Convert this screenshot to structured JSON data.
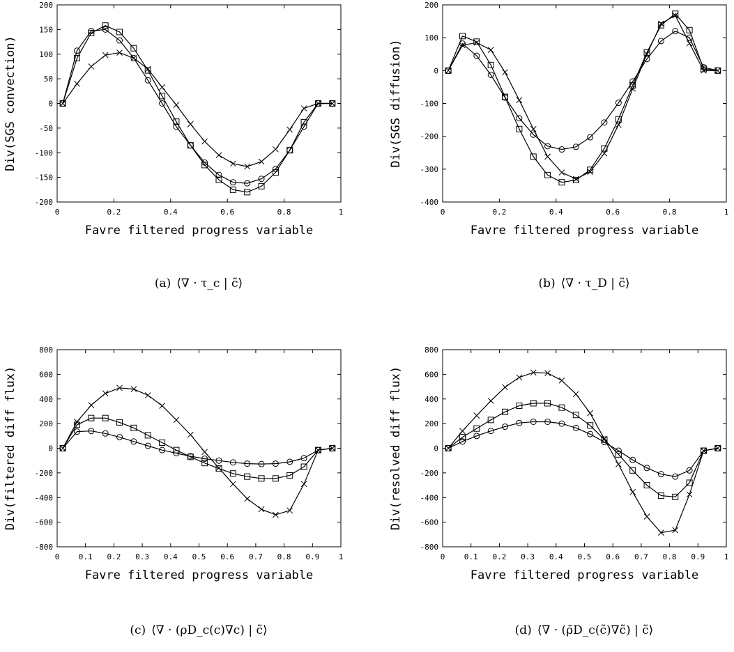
{
  "chart_data": [
    {
      "type": "line",
      "caption_label": "(a)",
      "caption_math": "⟨∇ · τ_c | c̃⟩",
      "xlabel": "Favre filtered progress variable",
      "ylabel": "Div(SGS convection)",
      "xlim": [
        0,
        1
      ],
      "ylim": [
        -200,
        200
      ],
      "xticks": [
        "0",
        "0.2",
        "0.4",
        "0.6",
        "0.8",
        "1"
      ],
      "yticks": [
        "200",
        "150",
        "100",
        "50",
        "0",
        "-50",
        "-100",
        "-150",
        "-200"
      ],
      "x": [
        0.02,
        0.07,
        0.12,
        0.17,
        0.22,
        0.27,
        0.32,
        0.37,
        0.42,
        0.47,
        0.52,
        0.57,
        0.62,
        0.67,
        0.72,
        0.77,
        0.82,
        0.87,
        0.92,
        0.97
      ],
      "series": [
        {
          "marker": "circle",
          "values": [
            0,
            107,
            147,
            150,
            128,
            92,
            47,
            0,
            -47,
            -85,
            -120,
            -145,
            -160,
            -162,
            -153,
            -133,
            -95,
            -47,
            0,
            0
          ]
        },
        {
          "marker": "square",
          "values": [
            0,
            92,
            143,
            158,
            145,
            112,
            67,
            15,
            -37,
            -85,
            -125,
            -155,
            -175,
            -180,
            -168,
            -140,
            -95,
            -38,
            0,
            0
          ]
        },
        {
          "marker": "cross",
          "values": [
            0,
            40,
            75,
            98,
            103,
            92,
            70,
            33,
            -3,
            -42,
            -77,
            -105,
            -122,
            -128,
            -118,
            -93,
            -53,
            -10,
            0,
            0
          ]
        }
      ]
    },
    {
      "type": "line",
      "caption_label": "(b)",
      "caption_math": "⟨∇ · τ_D | c̃⟩",
      "xlabel": "Favre filtered progress variable",
      "ylabel": "Div(SGS diffusion)",
      "xlim": [
        0,
        1
      ],
      "ylim": [
        -400,
        200
      ],
      "xticks": [
        "0",
        "0.2",
        "0.4",
        "0.6",
        "0.8",
        "1"
      ],
      "yticks": [
        "200",
        "100",
        "0",
        "-100",
        "-200",
        "-300",
        "-400"
      ],
      "x": [
        0.02,
        0.07,
        0.12,
        0.17,
        0.22,
        0.27,
        0.32,
        0.37,
        0.42,
        0.47,
        0.52,
        0.57,
        0.62,
        0.67,
        0.72,
        0.77,
        0.82,
        0.87,
        0.92,
        0.97
      ],
      "series": [
        {
          "marker": "circle",
          "values": [
            0,
            82,
            45,
            -13,
            -82,
            -145,
            -195,
            -230,
            -240,
            -232,
            -203,
            -158,
            -98,
            -33,
            35,
            90,
            120,
            100,
            10,
            0
          ]
        },
        {
          "marker": "square",
          "values": [
            0,
            105,
            88,
            17,
            -80,
            -178,
            -262,
            -318,
            -340,
            -333,
            -302,
            -237,
            -148,
            -45,
            55,
            138,
            173,
            123,
            5,
            0
          ]
        },
        {
          "marker": "cross",
          "values": [
            0,
            77,
            85,
            63,
            -5,
            -90,
            -178,
            -262,
            -310,
            -330,
            -308,
            -252,
            -165,
            -55,
            50,
            143,
            168,
            83,
            0,
            0
          ]
        }
      ]
    },
    {
      "type": "line",
      "caption_label": "(c)",
      "caption_math": "⟨∇ · (ρD_c(c)∇c) | c̃⟩",
      "xlabel": "Favre filtered progress variable",
      "ylabel": "Div(filtered diff flux)",
      "xlim": [
        0,
        1
      ],
      "ylim": [
        -800,
        800
      ],
      "xticks": [
        "0",
        "0.1",
        "0.2",
        "0.3",
        "0.4",
        "0.5",
        "0.6",
        "0.7",
        "0.8",
        "0.9",
        "1"
      ],
      "yticks": [
        "800",
        "600",
        "400",
        "200",
        "0",
        "-200",
        "-400",
        "-600",
        "-800"
      ],
      "x": [
        0.02,
        0.07,
        0.12,
        0.17,
        0.22,
        0.27,
        0.32,
        0.37,
        0.42,
        0.47,
        0.52,
        0.57,
        0.62,
        0.67,
        0.72,
        0.77,
        0.82,
        0.87,
        0.92,
        0.97
      ],
      "series": [
        {
          "marker": "circle",
          "values": [
            0,
            135,
            140,
            120,
            90,
            55,
            20,
            -15,
            -40,
            -65,
            -85,
            -100,
            -115,
            -125,
            -128,
            -125,
            -110,
            -80,
            -15,
            0
          ]
        },
        {
          "marker": "square",
          "values": [
            0,
            190,
            245,
            245,
            210,
            165,
            105,
            45,
            -15,
            -70,
            -120,
            -165,
            -205,
            -230,
            -245,
            -245,
            -220,
            -150,
            -15,
            0
          ]
        },
        {
          "marker": "cross",
          "values": [
            0,
            215,
            350,
            445,
            490,
            480,
            430,
            345,
            230,
            110,
            -30,
            -160,
            -290,
            -410,
            -495,
            -540,
            -505,
            -290,
            -15,
            0
          ]
        }
      ]
    },
    {
      "type": "line",
      "caption_label": "(d)",
      "caption_math": "⟨∇ · (ρ̄D_c(c̃)∇c̃) | c̃⟩",
      "xlabel": "Favre filtered progress variable",
      "ylabel": "Div(resolved diff flux)",
      "xlim": [
        0,
        1
      ],
      "ylim": [
        -800,
        800
      ],
      "xticks": [
        "0",
        "0.1",
        "0.2",
        "0.3",
        "0.4",
        "0.5",
        "0.6",
        "0.7",
        "0.8",
        "0.9",
        "1"
      ],
      "yticks": [
        "800",
        "600",
        "400",
        "200",
        "0",
        "-200",
        "-400",
        "-600",
        "-800"
      ],
      "x": [
        0.02,
        0.07,
        0.12,
        0.17,
        0.22,
        0.27,
        0.32,
        0.37,
        0.42,
        0.47,
        0.52,
        0.57,
        0.62,
        0.67,
        0.72,
        0.77,
        0.82,
        0.87,
        0.92,
        0.97
      ],
      "series": [
        {
          "marker": "circle",
          "values": [
            0,
            55,
            100,
            140,
            175,
            205,
            215,
            215,
            200,
            165,
            115,
            50,
            -20,
            -95,
            -160,
            -210,
            -230,
            -180,
            -20,
            0
          ]
        },
        {
          "marker": "square",
          "values": [
            0,
            90,
            160,
            230,
            295,
            345,
            365,
            365,
            330,
            270,
            185,
            70,
            -50,
            -180,
            -300,
            -385,
            -395,
            -280,
            -20,
            0
          ]
        },
        {
          "marker": "cross",
          "values": [
            0,
            140,
            265,
            385,
            495,
            575,
            615,
            610,
            550,
            440,
            285,
            75,
            -130,
            -355,
            -555,
            -685,
            -665,
            -375,
            -20,
            0
          ]
        }
      ]
    }
  ]
}
